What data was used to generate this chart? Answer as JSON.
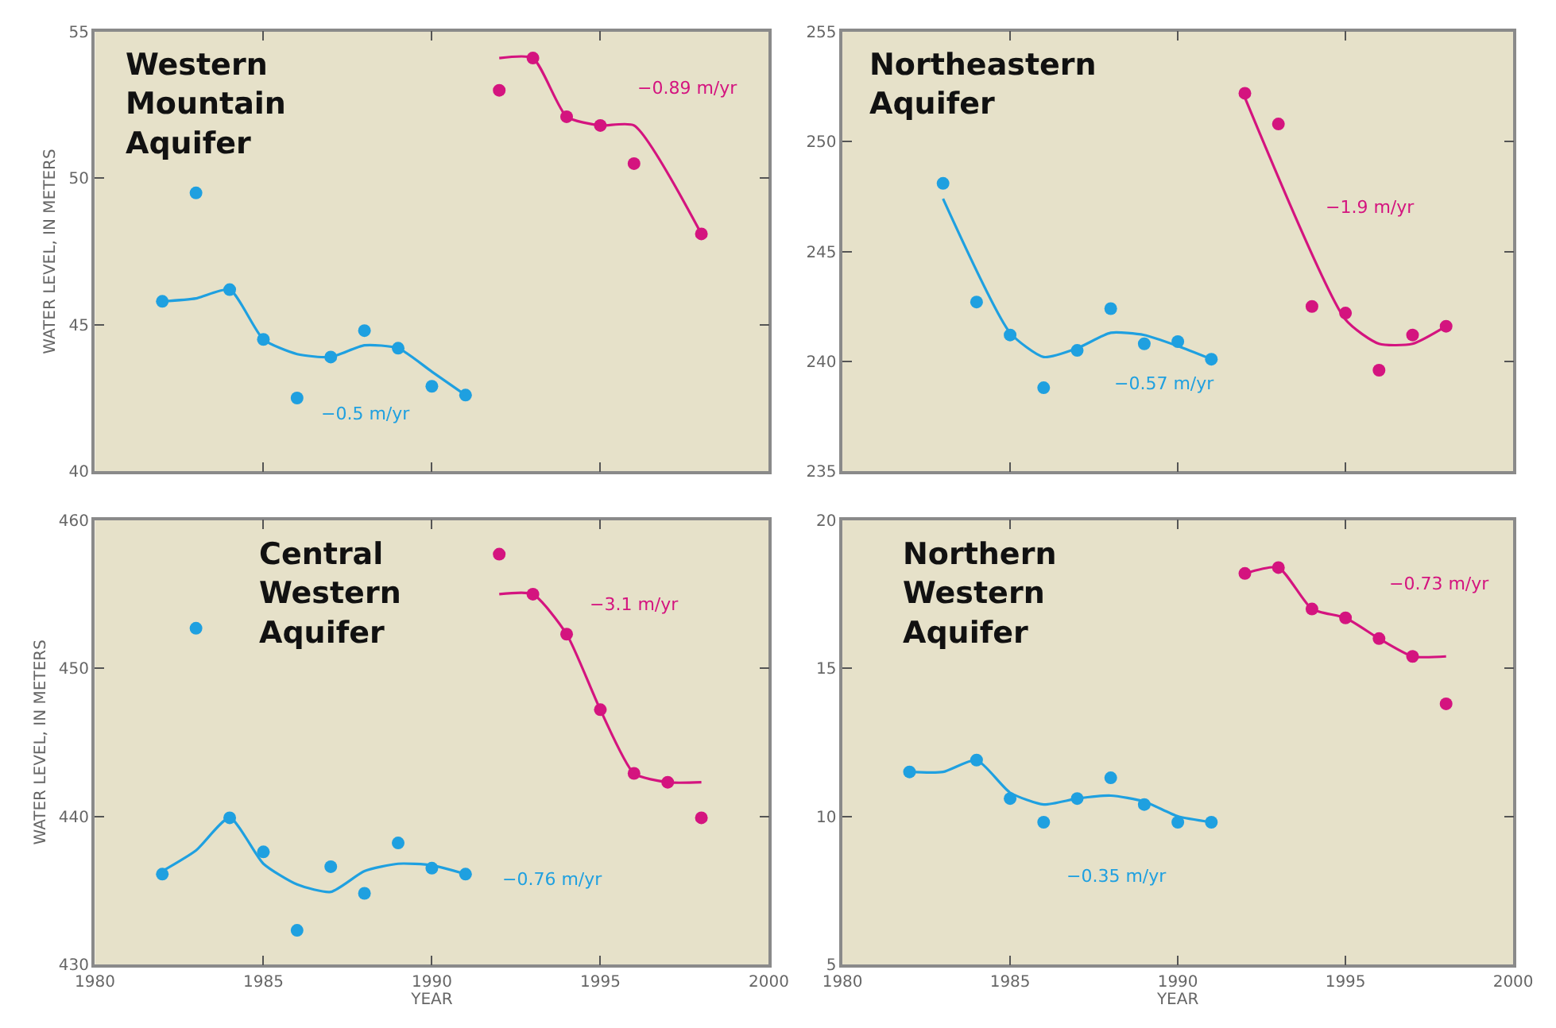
{
  "chart_data": [
    {
      "type": "scatter",
      "title": "Western\nMountain\nAquifer",
      "ylabel": "WATER LEVEL, IN METERS",
      "xlim": [
        1980,
        2000
      ],
      "xticks": [
        1980,
        1985,
        1990,
        1995,
        2000
      ],
      "ylim": [
        40,
        55
      ],
      "yticks": [
        40,
        45,
        50,
        55
      ],
      "tick_labels": "y",
      "grid": false,
      "marker": "circle",
      "series": [
        {
          "color": "#1fa0e0",
          "x": [
            1982,
            1983,
            1984,
            1985,
            1986,
            1987,
            1988,
            1989,
            1990,
            1991
          ],
          "values": [
            45.8,
            49.5,
            46.2,
            44.5,
            42.5,
            43.9,
            44.8,
            44.2,
            42.9,
            42.6
          ]
        },
        {
          "type": "line",
          "marker": "none",
          "color": "#1fa0e0",
          "x": [
            1982,
            1983,
            1984,
            1985,
            1986,
            1987,
            1988,
            1989,
            1990,
            1991
          ],
          "values": [
            45.8,
            45.9,
            46.2,
            44.5,
            44.0,
            43.9,
            44.3,
            44.2,
            43.4,
            42.6
          ]
        },
        {
          "color": "#d4147f",
          "x": [
            1992,
            1993,
            1994,
            1995,
            1996,
            1998
          ],
          "values": [
            53.0,
            54.1,
            52.1,
            51.8,
            50.5,
            48.1
          ]
        },
        {
          "type": "line",
          "marker": "none",
          "color": "#d4147f",
          "x": [
            1992,
            1993,
            1994,
            1995,
            1996,
            1998
          ],
          "values": [
            54.1,
            54.1,
            52.1,
            51.8,
            51.8,
            48.1
          ]
        }
      ],
      "annotations": [
        "−0.89 m/yr",
        "−0.5 m/yr"
      ]
    },
    {
      "type": "scatter",
      "title": "Northeastern\nAquifer",
      "xlim": [
        1980,
        2000
      ],
      "xticks": [
        1980,
        1985,
        1990,
        1995,
        2000
      ],
      "ylim": [
        235,
        255
      ],
      "yticks": [
        235,
        240,
        245,
        250,
        255
      ],
      "tick_labels": "y",
      "grid": false,
      "marker": "circle",
      "series": [
        {
          "color": "#1fa0e0",
          "x": [
            1983,
            1984,
            1985,
            1986,
            1987,
            1988,
            1989,
            1990,
            1991
          ],
          "values": [
            248.1,
            242.7,
            241.2,
            238.8,
            240.5,
            242.4,
            240.8,
            240.9,
            240.1
          ]
        },
        {
          "type": "line",
          "marker": "none",
          "color": "#1fa0e0",
          "x": [
            1983,
            1985,
            1986,
            1987,
            1988,
            1989,
            1990,
            1991
          ],
          "values": [
            247.4,
            241.3,
            240.2,
            240.6,
            241.3,
            241.2,
            240.7,
            240.1
          ]
        },
        {
          "color": "#d4147f",
          "x": [
            1992,
            1993,
            1994,
            1995,
            1996,
            1997,
            1998
          ],
          "values": [
            252.2,
            250.8,
            242.5,
            242.2,
            239.6,
            241.2,
            241.6
          ]
        },
        {
          "type": "line",
          "marker": "none",
          "color": "#d4147f",
          "x": [
            1992,
            1995,
            1996,
            1997,
            1998
          ],
          "values": [
            252.0,
            241.9,
            240.8,
            240.8,
            241.6
          ]
        }
      ],
      "annotations": [
        "−1.9 m/yr",
        "−0.57 m/yr"
      ]
    },
    {
      "type": "scatter",
      "title": "Central\nWestern\nAquifer",
      "xlabel": "YEAR",
      "ylabel": "WATER LEVEL, IN METERS",
      "xlim": [
        1980,
        2000
      ],
      "xticks": [
        1980,
        1985,
        1990,
        1995,
        2000
      ],
      "ylim": [
        430,
        460
      ],
      "yticks": [
        430,
        440,
        450,
        460
      ],
      "grid": false,
      "marker": "circle",
      "series": [
        {
          "color": "#1fa0e0",
          "x": [
            1982,
            1983,
            1984,
            1985,
            1986,
            1987,
            1988,
            1989,
            1990,
            1991
          ],
          "values": [
            436.1,
            452.7,
            439.9,
            437.6,
            432.3,
            436.6,
            434.8,
            438.2,
            436.5,
            436.1
          ]
        },
        {
          "type": "line",
          "marker": "none",
          "color": "#1fa0e0",
          "x": [
            1982,
            1983,
            1984,
            1985,
            1986,
            1987,
            1988,
            1989,
            1990,
            1991
          ],
          "values": [
            436.3,
            437.7,
            439.9,
            436.8,
            435.4,
            434.9,
            436.3,
            436.8,
            436.7,
            436.1
          ]
        },
        {
          "color": "#d4147f",
          "x": [
            1992,
            1993,
            1994,
            1995,
            1996,
            1997,
            1998
          ],
          "values": [
            457.7,
            455.0,
            452.3,
            447.2,
            442.9,
            442.3,
            439.9
          ]
        },
        {
          "type": "line",
          "marker": "none",
          "color": "#d4147f",
          "x": [
            1992,
            1993,
            1994,
            1995,
            1996,
            1997,
            1998
          ],
          "values": [
            455.0,
            455.0,
            452.3,
            447.2,
            442.9,
            442.3,
            442.3
          ]
        }
      ],
      "annotations": [
        "−3.1 m/yr",
        "−0.76 m/yr"
      ]
    },
    {
      "type": "scatter",
      "title": "Northern\nWestern\nAquifer",
      "xlabel": "YEAR",
      "xlim": [
        1980,
        2000
      ],
      "xticks": [
        1980,
        1985,
        1990,
        1995,
        2000
      ],
      "ylim": [
        5,
        20
      ],
      "yticks": [
        5,
        10,
        15,
        20
      ],
      "grid": false,
      "marker": "circle",
      "series": [
        {
          "color": "#1fa0e0",
          "x": [
            1982,
            1984,
            1985,
            1986,
            1987,
            1988,
            1989,
            1990,
            1991
          ],
          "values": [
            11.5,
            11.9,
            10.6,
            9.8,
            10.6,
            11.3,
            10.4,
            9.8,
            9.8
          ]
        },
        {
          "type": "line",
          "marker": "none",
          "color": "#1fa0e0",
          "x": [
            1982,
            1983,
            1984,
            1985,
            1986,
            1987,
            1988,
            1989,
            1990,
            1991
          ],
          "values": [
            11.5,
            11.5,
            11.9,
            10.8,
            10.4,
            10.6,
            10.7,
            10.5,
            10.0,
            9.8
          ]
        },
        {
          "color": "#d4147f",
          "x": [
            1992,
            1993,
            1994,
            1995,
            1996,
            1997,
            1998
          ],
          "values": [
            18.2,
            18.4,
            17.0,
            16.7,
            16.0,
            15.4,
            13.8
          ]
        },
        {
          "type": "line",
          "marker": "none",
          "color": "#d4147f",
          "x": [
            1992,
            1993,
            1994,
            1995,
            1996,
            1997,
            1998
          ],
          "values": [
            18.2,
            18.4,
            17.0,
            16.7,
            16.0,
            15.4,
            15.4
          ]
        }
      ],
      "annotations": [
        "−0.73 m/yr",
        "−0.35 m/yr"
      ]
    }
  ]
}
